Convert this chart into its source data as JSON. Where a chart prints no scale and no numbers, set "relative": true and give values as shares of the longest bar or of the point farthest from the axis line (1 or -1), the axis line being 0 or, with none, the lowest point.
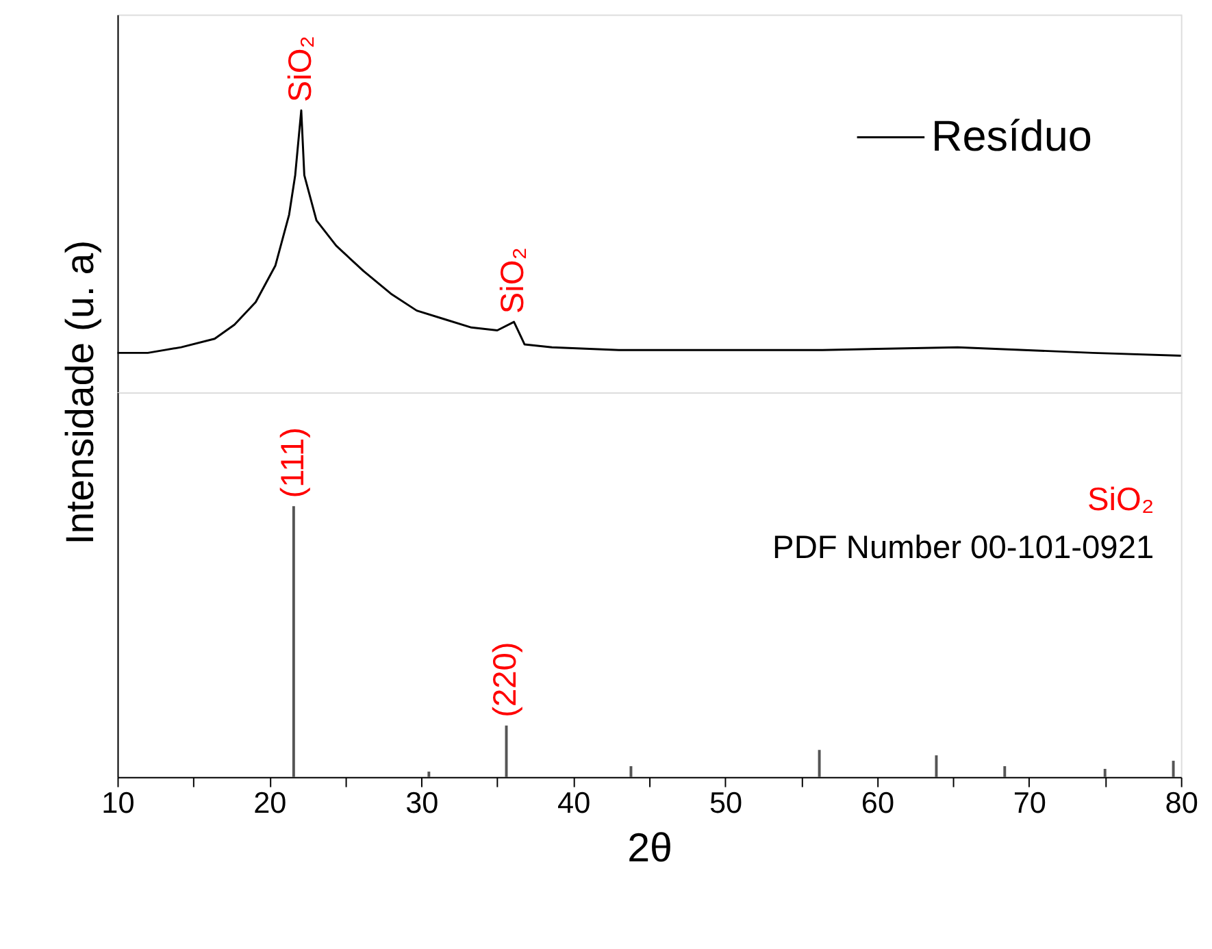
{
  "chart_data": [
    {
      "type": "line",
      "relative": true,
      "ylabel": "Intensidade (u. a)",
      "xlim": [
        10,
        80
      ],
      "tick_labels": false,
      "legend": "top right",
      "series": [
        {
          "name": "Resíduo",
          "color": "#000000",
          "x": [
            10,
            12,
            14.2,
            16.4,
            17.7,
            19.1,
            20.4,
            21.3,
            21.7,
            22.1,
            22.3,
            23.1,
            24.4,
            26.2,
            28,
            29.7,
            31.5,
            33.3,
            35,
            36.1,
            36.8,
            38.6,
            43,
            47.5,
            56.4,
            65.3,
            74.2,
            80
          ],
          "values": [
            0.14,
            0.14,
            0.16,
            0.19,
            0.24,
            0.32,
            0.45,
            0.63,
            0.77,
            1,
            0.77,
            0.61,
            0.52,
            0.43,
            0.35,
            0.29,
            0.26,
            0.23,
            0.22,
            0.25,
            0.17,
            0.16,
            0.15,
            0.15,
            0.15,
            0.16,
            0.14,
            0.13
          ]
        }
      ],
      "annotations": [
        {
          "text": "SiO₂",
          "x": 22.1,
          "y": 1
        },
        {
          "text": "SiO₂",
          "x": 36.1,
          "y": 0.25
        }
      ]
    },
    {
      "type": "bar",
      "relative": true,
      "xlabel": "2θ",
      "xlim": [
        10,
        80
      ],
      "tick_labels": "x",
      "xticks": [
        10,
        {
          "value": 15,
          "label": null
        },
        20,
        {
          "value": 25,
          "label": null
        },
        30,
        {
          "value": 35,
          "label": null
        },
        40,
        {
          "value": 45,
          "label": null
        },
        50,
        {
          "value": 55,
          "label": null
        },
        60,
        {
          "value": 65,
          "label": null
        },
        70,
        {
          "value": 75,
          "label": null
        },
        80
      ],
      "series": [
        {
          "color": "#555555",
          "x": [
            21.6,
            30.5,
            35.6,
            43.8,
            56.2,
            63.9,
            68.4,
            75.0,
            79.5
          ],
          "values": [
            1,
            0.02,
            0.19,
            0.04,
            0.1,
            0.08,
            0.04,
            0.03,
            0.06
          ]
        }
      ],
      "annotations": [
        {
          "text": "(111)",
          "x": 21.6,
          "y": 1
        },
        {
          "text": "(220)",
          "x": 35.6,
          "y": 0.19
        },
        "SiO₂",
        "PDF Number 00-101-0921"
      ]
    }
  ]
}
